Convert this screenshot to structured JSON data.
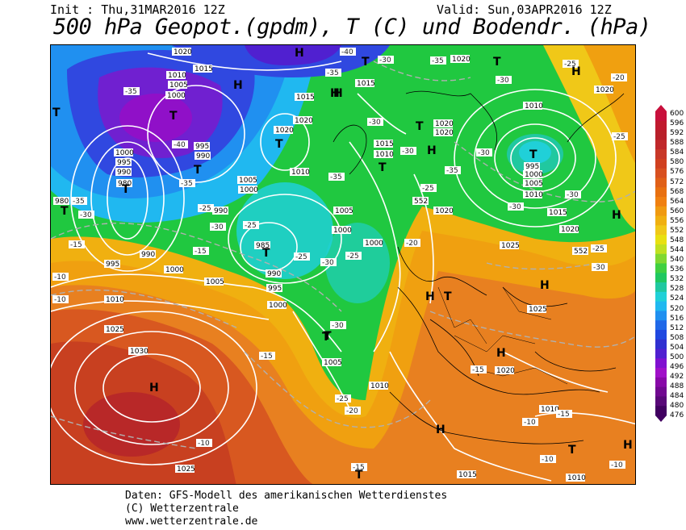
{
  "header": {
    "init": "Init : Thu,31MAR2016 12Z",
    "valid": "Valid: Sun,03APR2016 12Z",
    "title": "500 hPa Geopot.(gpdm), T (C) und Bodendr. (hPa)"
  },
  "footer": {
    "line1": "Daten: GFS-Modell des amerikanischen Wetterdienstes",
    "line2": "(C) Wetterzentrale",
    "line3": "www.wetterzentrale.de"
  },
  "legend": {
    "values": [
      "600",
      "596",
      "592",
      "588",
      "584",
      "580",
      "576",
      "572",
      "568",
      "564",
      "560",
      "556",
      "552",
      "548",
      "544",
      "540",
      "536",
      "532",
      "528",
      "524",
      "520",
      "516",
      "512",
      "508",
      "504",
      "500",
      "496",
      "492",
      "488",
      "484",
      "480",
      "476"
    ],
    "colors": [
      "#c8103c",
      "#c01a2e",
      "#b8202a",
      "#c0282a",
      "#c83828",
      "#d04020",
      "#d85020",
      "#e06018",
      "#e87010",
      "#f08010",
      "#f09a10",
      "#f0b010",
      "#f0c818",
      "#e8e010",
      "#c0e020",
      "#80d830",
      "#40d040",
      "#20c860",
      "#20c8a0",
      "#20d0d8",
      "#20b8f0",
      "#2090f0",
      "#2068e8",
      "#2048e0",
      "#3030d0",
      "#5020d0",
      "#8010d0",
      "#a010c8",
      "#8808a8",
      "#700890",
      "#580878",
      "#400060"
    ]
  },
  "pressure_labels": [
    "1020",
    "1015",
    "1010",
    "1005",
    "1000",
    "995",
    "990",
    "985",
    "980",
    "1025",
    "1030"
  ],
  "temperature_labels": [
    "-40",
    "-35",
    "-30",
    "-25",
    "-20",
    "-15",
    "-10"
  ],
  "systems": {
    "highs": [
      "H",
      "H",
      "H",
      "H",
      "H",
      "H",
      "H",
      "H",
      "H",
      "H"
    ],
    "lows": [
      "T",
      "T",
      "T",
      "T",
      "T",
      "T",
      "T",
      "T",
      "T",
      "T",
      "T",
      "T",
      "T",
      "T",
      "T"
    ]
  },
  "map_label_552": "552"
}
